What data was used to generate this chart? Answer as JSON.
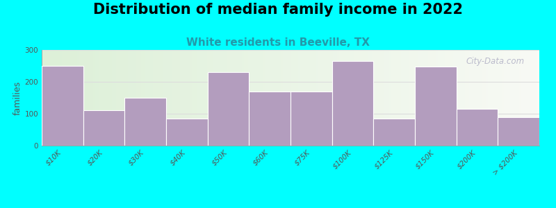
{
  "title": "Distribution of median family income in 2022",
  "subtitle": "White residents in Beeville, TX",
  "ylabel": "families",
  "categories": [
    "$10K",
    "$20K",
    "$30K",
    "$40K",
    "$50K",
    "$60K",
    "$75K",
    "$100K",
    "$125K",
    "$150K",
    "$200K",
    "> $200K"
  ],
  "values": [
    250,
    110,
    150,
    85,
    230,
    170,
    170,
    265,
    85,
    248,
    115,
    90
  ],
  "bar_color": "#b39dbe",
  "bar_edge_color": "#ffffff",
  "background_color": "#00ffff",
  "plot_bg_left": "#ddf0d8",
  "plot_bg_right": "#f8faf5",
  "title_fontsize": 15,
  "subtitle_fontsize": 11,
  "subtitle_color": "#2299aa",
  "ylabel_fontsize": 9,
  "tick_fontsize": 7.5,
  "ylim": [
    0,
    300
  ],
  "yticks": [
    0,
    100,
    200,
    300
  ],
  "watermark": "City-Data.com",
  "watermark_color": "#bbbbcc",
  "grid_color": "#dddddd"
}
